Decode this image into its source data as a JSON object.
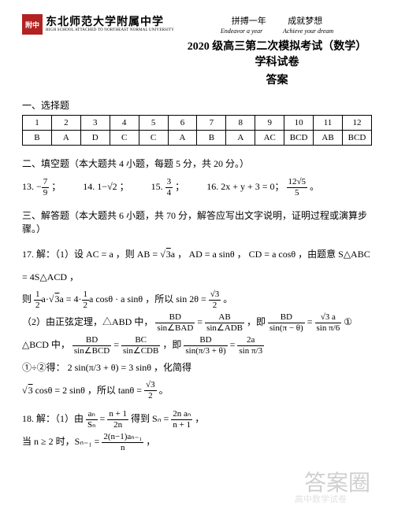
{
  "header": {
    "logo_text": "附中",
    "school_main": "东北师范大学附属中学",
    "school_sub": "HIGH SCHOOL ATTACHED TO NORTHEAST NORMAL UNIVERSITY",
    "motto_cn_left": "拼搏一年",
    "motto_cn_right": "成就梦想",
    "motto_en_left": "Endeavor a year",
    "motto_en_right": "Achieve your dream",
    "title_main": "2020 级高三第二次模拟考试（数学）学科试卷",
    "title_sub": "答案"
  },
  "sections": {
    "choice_heading": "一、选择题",
    "fill_heading": "二、填空题（本大题共 4 小题，每题 5 分，共 20 分。）",
    "solve_heading": "三、解答题（本大题共 6 小题，共 70 分，解答应写出文字说明，证明过程或演算步骤。）"
  },
  "choice_table": {
    "headers": [
      "1",
      "2",
      "3",
      "4",
      "5",
      "6",
      "7",
      "8",
      "9",
      "10",
      "11",
      "12"
    ],
    "answers": [
      "B",
      "A",
      "D",
      "C",
      "C",
      "A",
      "B",
      "A",
      "AC",
      "BCD",
      "AB",
      "BCD"
    ]
  },
  "fill": {
    "q13_label": "13.",
    "q13_num": "7",
    "q13_den": "9",
    "q13_tail": "；",
    "q14_label": "14.",
    "q14_val": "1−√2",
    "q14_tail": "；",
    "q15_label": "15.",
    "q15_num": "3",
    "q15_den": "4",
    "q15_tail": "；",
    "q16_label": "16.",
    "q16_eq": "2x + y + 3 = 0；",
    "q16_num": "12√5",
    "q16_den": "5",
    "q16_tail": "。"
  },
  "q17": {
    "line1_a": "17. 解：（1）设 AC = a ，则 AB = ",
    "line1_b": "a ， AD = a sinθ ， CD = a cosθ ，由题意 S△ABC = 4S△ACD ，",
    "line2_a": "则 ",
    "line2_mid": " ，所以 sin 2θ = ",
    "line2_tail": " 。",
    "line3_a": "（2）由正弦定理，△ABD 中，",
    "line3_eq": " ，即 ",
    "line3_tail": " ①",
    "line4_a": "△BCD 中，",
    "line4_eq": " ，即 ",
    "line4_tail": "",
    "line5_a": "①÷②得：",
    "line5_b": " = 3 sinθ ，化简得",
    "line6_a": "",
    "line6_b": " cosθ = 2 sinθ ，所以 tanθ = ",
    "line6_tail": " 。",
    "frac_half_n": "1",
    "frac_half_d": "2",
    "sqrt3": "3",
    "frac_s2_n": "√3",
    "frac_s2_d": "2",
    "bd": "BD",
    "ab": "AB",
    "bc": "BC",
    "sinBAD": "sin∠BAD",
    "sinADB": "sin∠ADB",
    "sinBCD": "sin∠BCD",
    "sinCDB": "sin∠CDB",
    "sin_pi_minus": "sin(π − θ)",
    "sin_pi6": "sin π/6",
    "sqrt3a": "√3 a",
    "sin_pi3_plus": "sin(π/3 + θ)",
    "twoa": "2a",
    "sin_pi3": "sin π/3",
    "two_sin": "2 sin(π/3 + θ)"
  },
  "q18": {
    "line1_a": "18. 解：（1）由 ",
    "line1_mid": " 得到 Sₙ = ",
    "line1_tail": " ，",
    "an": "aₙ",
    "Sn": "Sₙ",
    "np1": "n + 1",
    "twon": "2n",
    "twonan": "2n aₙ",
    "line2_a": "当 n ≥ 2 时，Sₙ₋₁ = ",
    "line2_num": "2(n−1)aₙ₋₁",
    "line2_den": "n",
    "line2_tail": " ，"
  },
  "watermark": "答案圈",
  "watermark2": "高中数学试卷"
}
